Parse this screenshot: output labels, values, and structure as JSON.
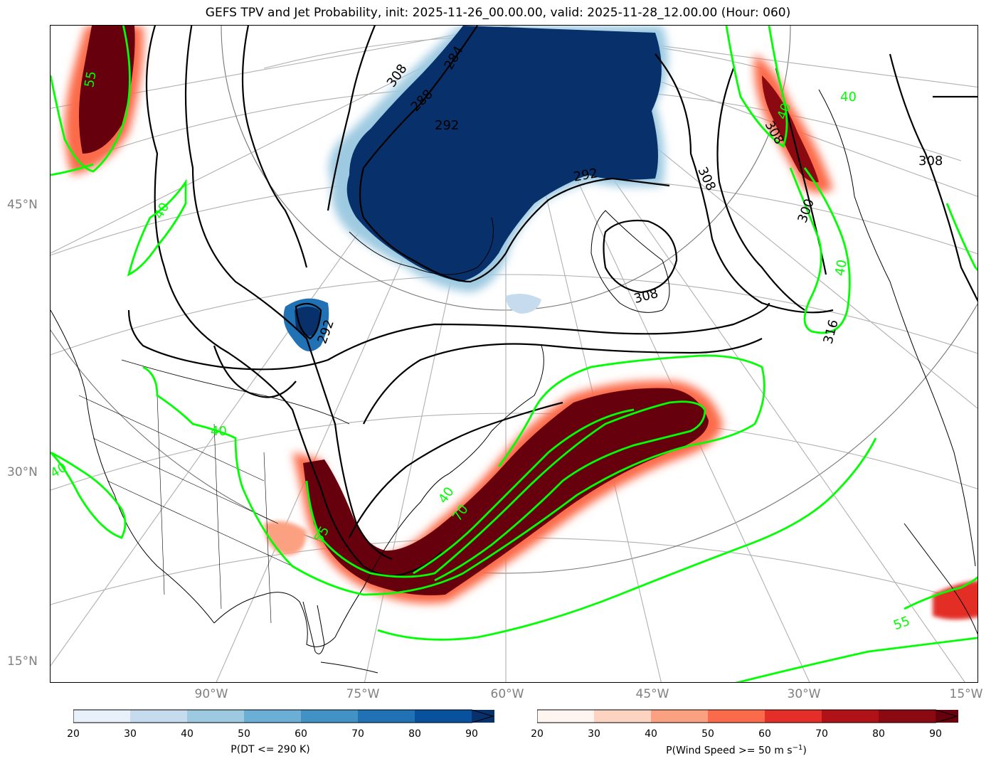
{
  "title": "GEFS TPV and Jet Probability, init: 2025-11-26_00.00.00, valid: 2025-11-28_12.00.00 (Hour: 060)",
  "lat_labels": [
    "45°N",
    "30°N",
    "15°N"
  ],
  "lon_labels": [
    "90°W",
    "75°W",
    "60°W",
    "45°W",
    "30°W",
    "15°W"
  ],
  "contour_labels": {
    "theta": [
      "308",
      "284",
      "288",
      "292",
      "292",
      "308",
      "308",
      "308",
      "300",
      "292",
      "316",
      "308"
    ],
    "wind": [
      "55",
      "40",
      "40",
      "40",
      "70",
      "55",
      "40",
      "40",
      "40",
      "55",
      "40"
    ]
  },
  "colorbars": [
    {
      "name": "dt",
      "label": "P(DT <= 290 K)",
      "ticks": [
        "20",
        "30",
        "40",
        "50",
        "60",
        "70",
        "80",
        "90"
      ],
      "colors": [
        "#e8f1fa",
        "#c7dbef",
        "#9ecae1",
        "#6baed6",
        "#4292c6",
        "#2171b5",
        "#08519c",
        "#08306b"
      ]
    },
    {
      "name": "wind",
      "label": "P(Wind Speed >= 50 m s",
      "label_sup": "−1",
      "label_end": ")",
      "ticks": [
        "20",
        "30",
        "40",
        "50",
        "60",
        "70",
        "80",
        "90"
      ],
      "colors": [
        "#fff5f0",
        "#fdd4c2",
        "#fca082",
        "#fb6a4a",
        "#e32f27",
        "#b11218",
        "#8b0a12",
        "#67000d"
      ]
    }
  ],
  "colors": {
    "tpv_fill": "#08306b",
    "jet_fill": "#67000d",
    "wind_contour": "#00ff00",
    "theta_contour": "#000000",
    "graticule": "#a9a9a9",
    "labels": "#808080"
  }
}
